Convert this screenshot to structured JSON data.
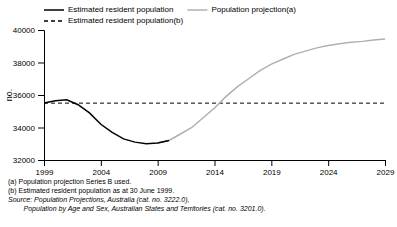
{
  "chart_data": {
    "type": "line",
    "ylabel": "no.",
    "xlim": [
      1999,
      2029
    ],
    "ylim": [
      32000,
      40000
    ],
    "xticks": [
      1999,
      2004,
      2009,
      2014,
      2019,
      2024,
      2029
    ],
    "yticks": [
      32000,
      34000,
      36000,
      38000,
      40000
    ],
    "grid": false,
    "series": [
      {
        "name": "Estimated resident population",
        "color": "#000000",
        "line_style": "solid",
        "x": [
          1999,
          2000,
          2001,
          2002,
          2003,
          2004,
          2005,
          2006,
          2007,
          2008,
          2009,
          2010
        ],
        "values": [
          35500,
          35650,
          35700,
          35400,
          34900,
          34200,
          33700,
          33300,
          33100,
          33000,
          33050,
          33200
        ]
      },
      {
        "name": "Population projection(a)",
        "color": "#b0b0b0",
        "line_style": "solid",
        "x": [
          2009,
          2010,
          2011,
          2012,
          2013,
          2014,
          2015,
          2016,
          2017,
          2018,
          2019,
          2020,
          2021,
          2022,
          2023,
          2024,
          2025,
          2026,
          2027,
          2028,
          2029
        ],
        "values": [
          33050,
          33200,
          33600,
          34000,
          34600,
          35200,
          35900,
          36500,
          37000,
          37500,
          37900,
          38200,
          38500,
          38700,
          38900,
          39050,
          39150,
          39250,
          39300,
          39380,
          39450
        ]
      },
      {
        "name": "Estimated resident population(b)",
        "color": "#000000",
        "line_style": "dashed",
        "type": "hline",
        "values": [
          35500
        ]
      }
    ],
    "footnotes": [
      "(a) Population projection Series B used.",
      "(b) Estimated resident population as at 30 June 1999."
    ],
    "source": [
      "Source: Population Projections, Australia (cat. no. 3222.0),",
      "        Population by Age and Sex, Australian States and Territories (cat. no. 3201.0)."
    ]
  }
}
